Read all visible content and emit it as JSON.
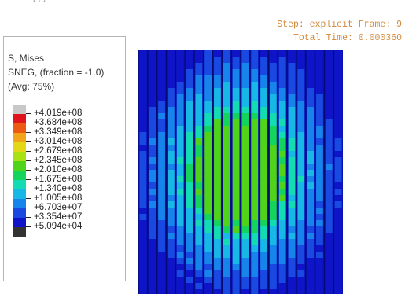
{
  "viewport": {
    "top_clipped_text": "...",
    "status": {
      "step_line": "Step: explicit Frame: 9",
      "time_line": "Total Time: 0.000360"
    }
  },
  "legend": {
    "title_lines": [
      "S, Mises",
      "SNEG, (fraction = -1.0)",
      "(Avg: 75%)"
    ],
    "levels": [
      {
        "label": "+4.019e+08",
        "color": "#c8c8c8"
      },
      {
        "label": "+3.684e+08",
        "color": "#e0141b"
      },
      {
        "label": "+3.349e+08",
        "color": "#ec5a13"
      },
      {
        "label": "+3.014e+08",
        "color": "#f2a51a"
      },
      {
        "label": "+2.679e+08",
        "color": "#e3d818"
      },
      {
        "label": "+2.345e+08",
        "color": "#a9e214"
      },
      {
        "label": "+2.010e+08",
        "color": "#4fd41a"
      },
      {
        "label": "+1.675e+08",
        "color": "#15d45b"
      },
      {
        "label": "+1.340e+08",
        "color": "#14dcb2"
      },
      {
        "label": "+1.005e+08",
        "color": "#18b8e6"
      },
      {
        "label": "+6.703e+07",
        "color": "#1684ea"
      },
      {
        "label": "+3.354e+07",
        "color": "#1a49e2"
      },
      {
        "label": "+5.094e+04",
        "color": "#0f14c8"
      },
      {
        "label": "",
        "color": "#333333"
      }
    ]
  },
  "plot": {
    "background_color": "#0a14b4",
    "strip_count": 22
  }
}
